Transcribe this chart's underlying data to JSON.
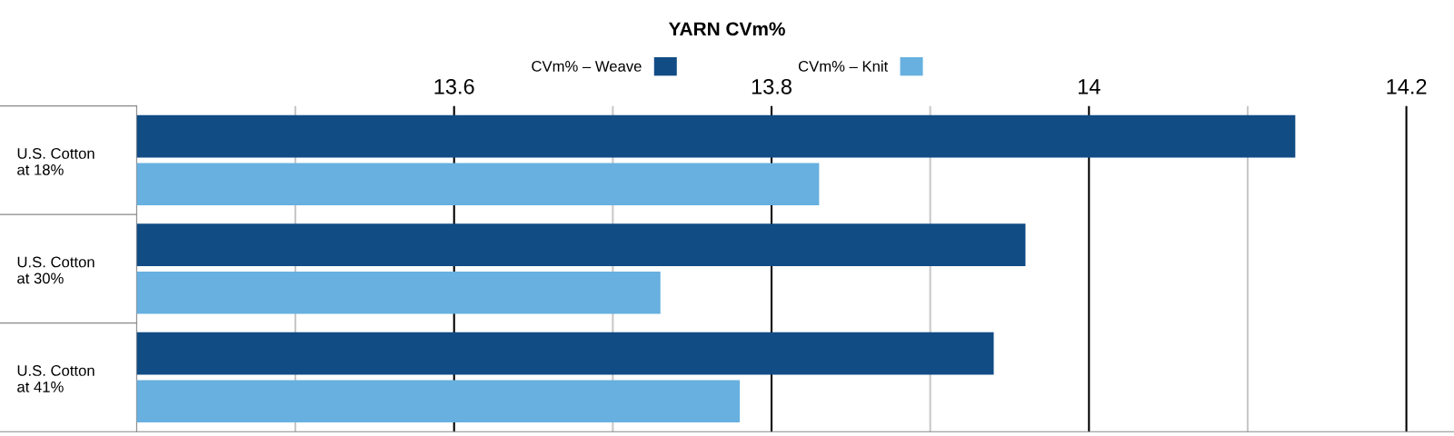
{
  "chart_data": {
    "type": "bar",
    "title": "YARN CVm%",
    "orientation": "horizontal",
    "categories": [
      "U.S. Cotton\nat 18%",
      "U.S. Cotton\nat 30%",
      "U.S. Cotton\nat 41%"
    ],
    "series": [
      {
        "name": "CVm% – Weave",
        "color": "#114c85",
        "values": [
          14.13,
          13.96,
          13.94
        ]
      },
      {
        "name": "CVm% – Knit",
        "color": "#67b0e0",
        "values": [
          13.83,
          13.73,
          13.78
        ]
      }
    ],
    "xlim": [
      13.4,
      14.23
    ],
    "xticks": [
      {
        "value": 13.5,
        "label": null
      },
      13.6,
      {
        "value": 13.7,
        "label": null
      },
      13.8,
      {
        "value": 13.9,
        "label": null
      },
      14,
      {
        "value": 14.1,
        "label": null
      },
      14.2
    ],
    "grid": "x",
    "legend": "top"
  }
}
